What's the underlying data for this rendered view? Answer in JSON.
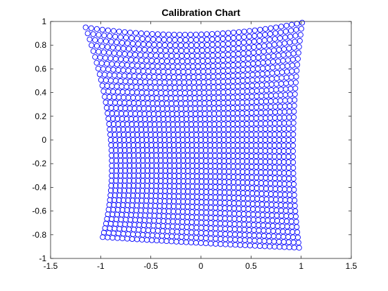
{
  "chart_data": {
    "type": "scatter",
    "title": "Calibration Chart",
    "xlabel": "",
    "ylabel": "",
    "xlim": [
      -1.5,
      1.5
    ],
    "ylim": [
      -1,
      1
    ],
    "xticks": [
      -1.5,
      -1,
      -0.5,
      0,
      0.5,
      1,
      1.5
    ],
    "xtick_labels": [
      "-1.5",
      "-1",
      "-0.5",
      "0",
      "0.5",
      "1",
      "1.5"
    ],
    "yticks": [
      -1,
      -0.8,
      -0.6,
      -0.4,
      -0.2,
      0,
      0.2,
      0.4,
      0.6,
      0.8,
      1
    ],
    "ytick_labels": [
      "-1",
      "-0.8",
      "-0.6",
      "-0.4",
      "-0.2",
      "0",
      "0.2",
      "0.4",
      "0.6",
      "0.8",
      "1"
    ],
    "grid": false,
    "legend": "none",
    "marker": "circle-open",
    "series_color": "#0000ff",
    "grid_points": {
      "columns": 41,
      "rows": 41,
      "corners": {
        "top_left": [
          -1.15,
          0.95
        ],
        "top_right": [
          1.01,
          0.99
        ],
        "bottom_left": [
          -0.98,
          -0.82
        ],
        "bottom_right": [
          0.98,
          -0.91
        ]
      },
      "edge_midpoints": {
        "top": [
          -0.05,
          0.89
        ],
        "bottom": [
          0.0,
          -0.87
        ],
        "left": [
          -0.9,
          0.0
        ],
        "right": [
          0.92,
          0.0
        ]
      },
      "center": [
        0.0,
        0.0
      ]
    }
  }
}
